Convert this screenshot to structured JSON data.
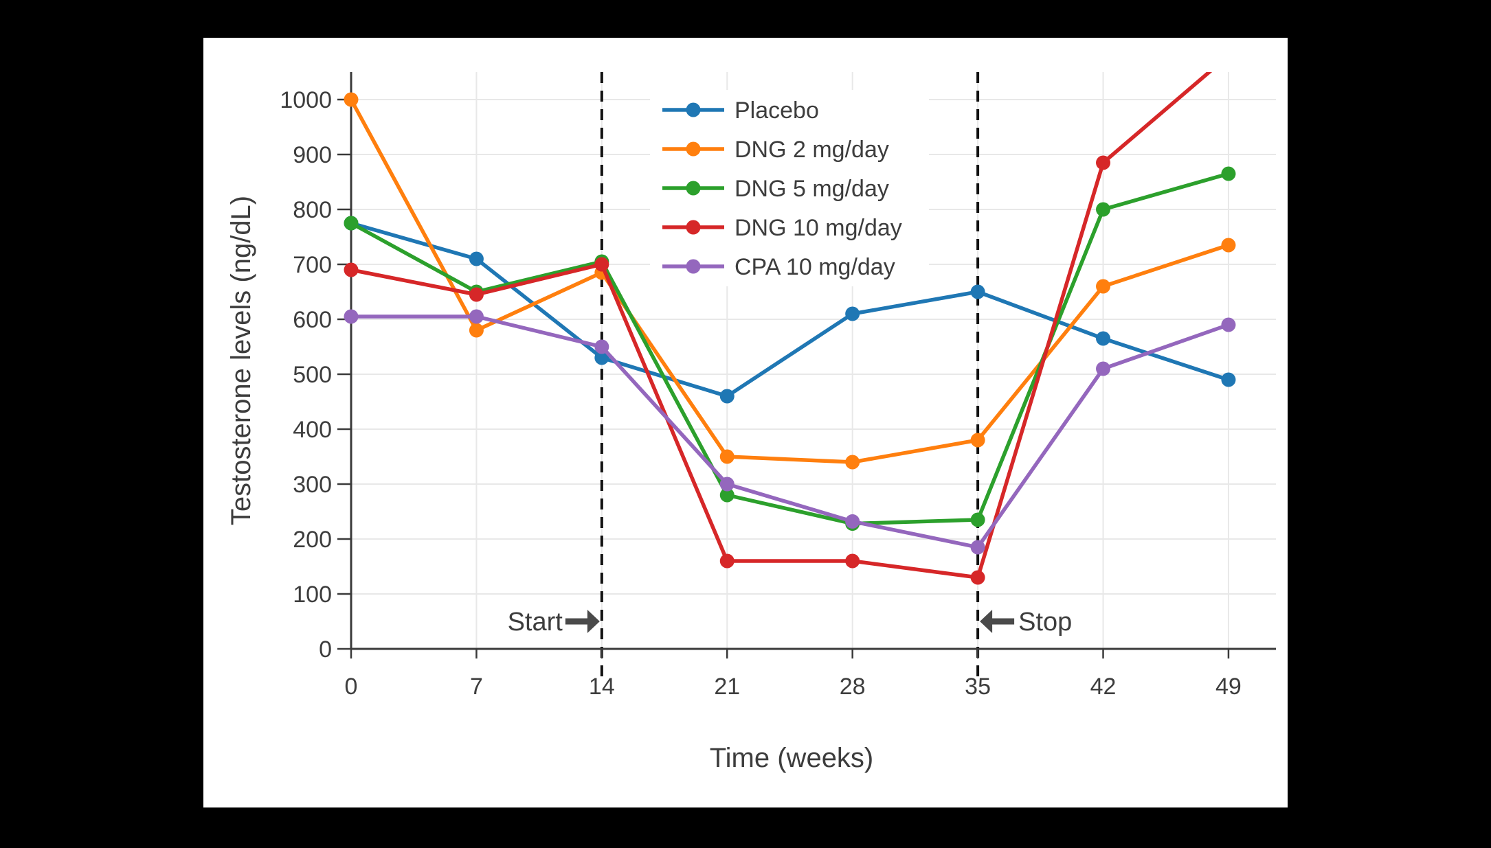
{
  "app": {
    "background_color": "#000000",
    "card_background_color": "#ffffff"
  },
  "chart_data": {
    "type": "line",
    "title": "",
    "xlabel": "Time (weeks)",
    "ylabel": "Testosterone levels (ng/dL)",
    "x": [
      0,
      7,
      14,
      21,
      28,
      35,
      42,
      49
    ],
    "x_tick_labels": [
      "0",
      "7",
      "14",
      "21",
      "28",
      "35",
      "42",
      "49"
    ],
    "y_ticks": [
      0,
      100,
      200,
      300,
      400,
      500,
      600,
      700,
      800,
      900,
      1000
    ],
    "ylim": [
      0,
      1050
    ],
    "grid": true,
    "grid_color": "#e8e8e8",
    "axis_color": "#3a3a3a",
    "text_color": "#3d3d3d",
    "legend_position": "inside-top-center-right",
    "series": [
      {
        "name": "Placebo",
        "color": "#1f77b4",
        "values": [
          775,
          710,
          530,
          460,
          610,
          650,
          565,
          490
        ]
      },
      {
        "name": "DNG 2 mg/day",
        "color": "#ff7f0e",
        "values": [
          1000,
          580,
          685,
          350,
          340,
          380,
          660,
          735
        ]
      },
      {
        "name": "DNG 5 mg/day",
        "color": "#2ca02c",
        "values": [
          775,
          650,
          705,
          280,
          228,
          235,
          800,
          865
        ]
      },
      {
        "name": "DNG 10 mg/day",
        "color": "#d62728",
        "values": [
          690,
          645,
          700,
          160,
          160,
          130,
          885,
          1080
        ]
      },
      {
        "name": "CPA 10 mg/day",
        "color": "#9467bd",
        "values": [
          605,
          605,
          550,
          300,
          232,
          185,
          510,
          590
        ]
      }
    ],
    "reference_lines": [
      {
        "id": "start",
        "week": 14,
        "style": "dashed",
        "color": "#111111"
      },
      {
        "id": "stop",
        "week": 35,
        "style": "dashed",
        "color": "#111111"
      }
    ],
    "annotations": [
      {
        "label": "Start",
        "week": 14,
        "arrow": "right",
        "y_value": 50
      },
      {
        "label": "Stop",
        "week": 35,
        "arrow": "left",
        "y_value": 50
      }
    ]
  }
}
